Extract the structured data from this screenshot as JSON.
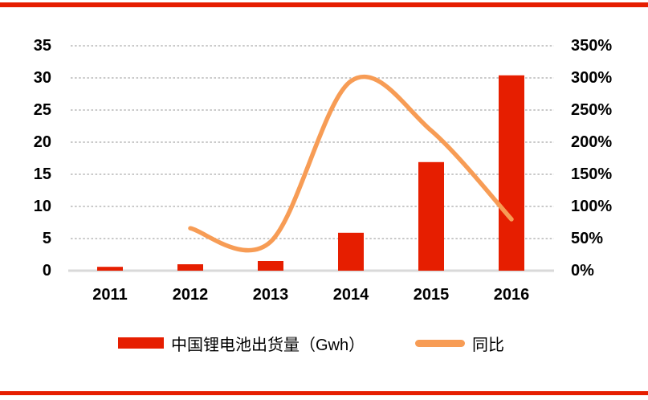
{
  "page": {
    "background": "#ffffff",
    "accent_color": "#e61e00"
  },
  "chart_data": {
    "type": "combo-bar-line",
    "title": "",
    "categories": [
      "2011",
      "2012",
      "2013",
      "2014",
      "2015",
      "2016"
    ],
    "series": [
      {
        "name": "中国锂电池出货量（Gwh）",
        "type": "bar",
        "axis": "left",
        "color": "#e61e00",
        "values": [
          0.6,
          1,
          1.5,
          5.9,
          16.9,
          30.4
        ]
      },
      {
        "name": "同比",
        "type": "line",
        "axis": "right",
        "unit": "%",
        "color": "#f79c55",
        "values": [
          null,
          66,
          45,
          295,
          218,
          80
        ]
      }
    ],
    "left_axis": {
      "min": 0,
      "max": 35,
      "step": 5,
      "ticks": [
        "0",
        "5",
        "10",
        "15",
        "20",
        "25",
        "30",
        "35"
      ]
    },
    "right_axis": {
      "min": 0,
      "max": 350,
      "step": 50,
      "unit": "%",
      "ticks": [
        "0%",
        "50%",
        "100%",
        "150%",
        "200%",
        "250%",
        "300%",
        "350%"
      ]
    },
    "grid": {
      "show": true,
      "style": "dotted",
      "color": "#c9c9c9",
      "baseline_color": "#d9d9d9"
    },
    "legend": {
      "position": "bottom"
    }
  }
}
